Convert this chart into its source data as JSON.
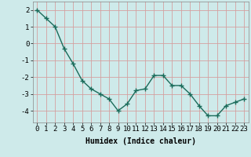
{
  "x": [
    0,
    1,
    2,
    3,
    4,
    5,
    6,
    7,
    8,
    9,
    10,
    11,
    12,
    13,
    14,
    15,
    16,
    17,
    18,
    19,
    20,
    21,
    22,
    23
  ],
  "y": [
    2.0,
    1.5,
    1.0,
    -0.3,
    -1.2,
    -2.2,
    -2.7,
    -3.0,
    -3.3,
    -4.0,
    -3.6,
    -2.8,
    -2.7,
    -1.9,
    -1.9,
    -2.5,
    -2.5,
    -3.0,
    -3.7,
    -4.3,
    -4.3,
    -3.7,
    -3.5,
    -3.3
  ],
  "xlabel": "Humidex (Indice chaleur)",
  "ylim": [
    -4.7,
    2.5
  ],
  "xlim": [
    -0.5,
    23.5
  ],
  "yticks": [
    -4,
    -3,
    -2,
    -1,
    0,
    1,
    2
  ],
  "xticks": [
    0,
    1,
    2,
    3,
    4,
    5,
    6,
    7,
    8,
    9,
    10,
    11,
    12,
    13,
    14,
    15,
    16,
    17,
    18,
    19,
    20,
    21,
    22,
    23
  ],
  "xtick_labels": [
    "0",
    "1",
    "2",
    "3",
    "4",
    "5",
    "6",
    "7",
    "8",
    "9",
    "10",
    "11",
    "12",
    "13",
    "14",
    "15",
    "16",
    "17",
    "18",
    "19",
    "20",
    "21",
    "22",
    "23"
  ],
  "line_color": "#1a6b5a",
  "marker_color": "#1a6b5a",
  "bg_color": "#ceeaea",
  "grid_color": "#d4a0a0",
  "xlabel_fontsize": 7,
  "tick_fontsize": 6.5,
  "line_width": 1.0,
  "marker_size": 2.5
}
